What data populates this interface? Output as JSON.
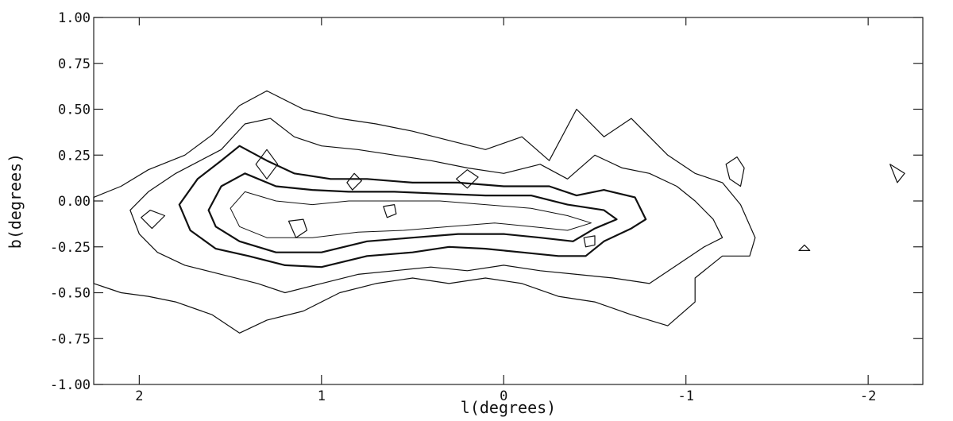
{
  "chart_data": {
    "type": "contour",
    "title": "",
    "xlabel": "l(degrees)",
    "ylabel": "b(degrees)",
    "xlim": [
      2.25,
      -2.3
    ],
    "ylim": [
      -1.0,
      1.0
    ],
    "x_ticks": [
      {
        "value": 2,
        "label": "2"
      },
      {
        "value": 1,
        "label": "1"
      },
      {
        "value": 0,
        "label": "0"
      },
      {
        "value": -1,
        "label": "-1"
      },
      {
        "value": -2,
        "label": "-2"
      }
    ],
    "y_ticks": [
      {
        "value": 1.0,
        "label": "1.00"
      },
      {
        "value": 0.75,
        "label": "0.75"
      },
      {
        "value": 0.5,
        "label": "0.50"
      },
      {
        "value": 0.25,
        "label": "0.25"
      },
      {
        "value": 0.0,
        "label": "0.00"
      },
      {
        "value": -0.25,
        "label": "-0.25"
      },
      {
        "value": -0.5,
        "label": "-0.50"
      },
      {
        "value": -0.75,
        "label": "-0.75"
      },
      {
        "value": -1.0,
        "label": "-1.00"
      }
    ],
    "grid": false,
    "contours": [
      {
        "level": 1,
        "points": [
          [
            2.25,
            0.02
          ],
          [
            2.1,
            0.08
          ],
          [
            1.95,
            0.17
          ],
          [
            1.75,
            0.25
          ],
          [
            1.6,
            0.36
          ],
          [
            1.45,
            0.52
          ],
          [
            1.3,
            0.6
          ],
          [
            1.1,
            0.5
          ],
          [
            0.9,
            0.45
          ],
          [
            0.7,
            0.42
          ],
          [
            0.5,
            0.38
          ],
          [
            0.3,
            0.33
          ],
          [
            0.1,
            0.28
          ],
          [
            -0.1,
            0.35
          ],
          [
            -0.25,
            0.22
          ],
          [
            -0.4,
            0.5
          ],
          [
            -0.55,
            0.35
          ],
          [
            -0.7,
            0.45
          ],
          [
            -0.9,
            0.25
          ],
          [
            -1.05,
            0.15
          ],
          [
            -1.2,
            0.1
          ],
          [
            -1.3,
            -0.02
          ],
          [
            -1.38,
            -0.2
          ],
          [
            -1.35,
            -0.3
          ],
          [
            -1.2,
            -0.3
          ],
          [
            -1.05,
            -0.42
          ],
          [
            -1.05,
            -0.55
          ],
          [
            -0.9,
            -0.68
          ],
          [
            -0.7,
            -0.62
          ],
          [
            -0.5,
            -0.55
          ],
          [
            -0.3,
            -0.52
          ],
          [
            -0.1,
            -0.45
          ],
          [
            0.1,
            -0.42
          ],
          [
            0.3,
            -0.45
          ],
          [
            0.5,
            -0.42
          ],
          [
            0.7,
            -0.45
          ],
          [
            0.9,
            -0.5
          ],
          [
            1.1,
            -0.6
          ],
          [
            1.3,
            -0.65
          ],
          [
            1.45,
            -0.72
          ],
          [
            1.6,
            -0.62
          ],
          [
            1.8,
            -0.55
          ],
          [
            1.95,
            -0.52
          ],
          [
            2.1,
            -0.5
          ],
          [
            2.25,
            -0.45
          ]
        ]
      },
      {
        "level": 2,
        "points": [
          [
            2.05,
            -0.05
          ],
          [
            1.95,
            0.05
          ],
          [
            1.8,
            0.15
          ],
          [
            1.55,
            0.28
          ],
          [
            1.42,
            0.42
          ],
          [
            1.28,
            0.45
          ],
          [
            1.15,
            0.35
          ],
          [
            1.0,
            0.3
          ],
          [
            0.8,
            0.28
          ],
          [
            0.6,
            0.25
          ],
          [
            0.4,
            0.22
          ],
          [
            0.2,
            0.18
          ],
          [
            0.0,
            0.15
          ],
          [
            -0.2,
            0.2
          ],
          [
            -0.35,
            0.12
          ],
          [
            -0.5,
            0.25
          ],
          [
            -0.65,
            0.18
          ],
          [
            -0.8,
            0.15
          ],
          [
            -0.95,
            0.08
          ],
          [
            -1.05,
            0.0
          ],
          [
            -1.15,
            -0.1
          ],
          [
            -1.2,
            -0.2
          ],
          [
            -1.1,
            -0.25
          ],
          [
            -0.95,
            -0.35
          ],
          [
            -0.8,
            -0.45
          ],
          [
            -0.6,
            -0.42
          ],
          [
            -0.4,
            -0.4
          ],
          [
            -0.2,
            -0.38
          ],
          [
            0.0,
            -0.35
          ],
          [
            0.2,
            -0.38
          ],
          [
            0.4,
            -0.36
          ],
          [
            0.6,
            -0.38
          ],
          [
            0.8,
            -0.4
          ],
          [
            1.0,
            -0.45
          ],
          [
            1.2,
            -0.5
          ],
          [
            1.35,
            -0.45
          ],
          [
            1.55,
            -0.4
          ],
          [
            1.75,
            -0.35
          ],
          [
            1.9,
            -0.28
          ],
          [
            2.0,
            -0.18
          ]
        ]
      },
      {
        "level": 3,
        "points": [
          [
            1.78,
            -0.02
          ],
          [
            1.68,
            0.12
          ],
          [
            1.55,
            0.22
          ],
          [
            1.45,
            0.3
          ],
          [
            1.3,
            0.22
          ],
          [
            1.15,
            0.15
          ],
          [
            0.95,
            0.12
          ],
          [
            0.75,
            0.12
          ],
          [
            0.5,
            0.1
          ],
          [
            0.25,
            0.1
          ],
          [
            0.0,
            0.08
          ],
          [
            -0.25,
            0.08
          ],
          [
            -0.4,
            0.03
          ],
          [
            -0.55,
            0.06
          ],
          [
            -0.72,
            0.02
          ],
          [
            -0.78,
            -0.1
          ],
          [
            -0.7,
            -0.15
          ],
          [
            -0.55,
            -0.22
          ],
          [
            -0.45,
            -0.3
          ],
          [
            -0.3,
            -0.3
          ],
          [
            -0.1,
            -0.28
          ],
          [
            0.1,
            -0.26
          ],
          [
            0.3,
            -0.25
          ],
          [
            0.5,
            -0.28
          ],
          [
            0.75,
            -0.3
          ],
          [
            1.0,
            -0.36
          ],
          [
            1.2,
            -0.35
          ],
          [
            1.4,
            -0.3
          ],
          [
            1.58,
            -0.26
          ],
          [
            1.72,
            -0.16
          ]
        ]
      },
      {
        "level": 4,
        "points": [
          [
            1.62,
            -0.05
          ],
          [
            1.55,
            0.08
          ],
          [
            1.42,
            0.15
          ],
          [
            1.25,
            0.08
          ],
          [
            1.05,
            0.06
          ],
          [
            0.85,
            0.05
          ],
          [
            0.6,
            0.05
          ],
          [
            0.35,
            0.04
          ],
          [
            0.1,
            0.03
          ],
          [
            -0.15,
            0.03
          ],
          [
            -0.35,
            -0.02
          ],
          [
            -0.55,
            -0.05
          ],
          [
            -0.62,
            -0.1
          ],
          [
            -0.5,
            -0.15
          ],
          [
            -0.38,
            -0.22
          ],
          [
            -0.2,
            -0.2
          ],
          [
            0.0,
            -0.18
          ],
          [
            0.25,
            -0.18
          ],
          [
            0.5,
            -0.2
          ],
          [
            0.75,
            -0.22
          ],
          [
            1.0,
            -0.28
          ],
          [
            1.25,
            -0.28
          ],
          [
            1.45,
            -0.22
          ],
          [
            1.58,
            -0.14
          ]
        ]
      },
      {
        "level": 5,
        "points": [
          [
            1.5,
            -0.04
          ],
          [
            1.42,
            0.05
          ],
          [
            1.25,
            0.0
          ],
          [
            1.05,
            -0.02
          ],
          [
            0.85,
            0.0
          ],
          [
            0.6,
            0.0
          ],
          [
            0.35,
            0.0
          ],
          [
            0.1,
            -0.02
          ],
          [
            -0.15,
            -0.04
          ],
          [
            -0.35,
            -0.08
          ],
          [
            -0.48,
            -0.12
          ],
          [
            -0.35,
            -0.16
          ],
          [
            -0.15,
            -0.14
          ],
          [
            0.05,
            -0.12
          ],
          [
            0.3,
            -0.14
          ],
          [
            0.55,
            -0.16
          ],
          [
            0.8,
            -0.17
          ],
          [
            1.05,
            -0.2
          ],
          [
            1.3,
            -0.2
          ],
          [
            1.45,
            -0.14
          ]
        ]
      },
      {
        "level": 6,
        "points": [
          [
            1.3,
            0.12
          ],
          [
            1.24,
            0.2
          ],
          [
            1.3,
            0.28
          ],
          [
            1.36,
            0.2
          ]
        ]
      },
      {
        "level": 6,
        "points": [
          [
            1.18,
            -0.11
          ],
          [
            1.1,
            -0.1
          ],
          [
            1.08,
            -0.16
          ],
          [
            1.14,
            -0.2
          ]
        ]
      },
      {
        "level": 6,
        "points": [
          [
            0.66,
            -0.03
          ],
          [
            0.6,
            -0.02
          ],
          [
            0.59,
            -0.07
          ],
          [
            0.64,
            -0.09
          ]
        ]
      },
      {
        "level": 6,
        "points": [
          [
            -0.44,
            -0.2
          ],
          [
            -0.5,
            -0.19
          ],
          [
            -0.5,
            -0.24
          ],
          [
            -0.45,
            -0.25
          ]
        ]
      },
      {
        "level": 1,
        "points": [
          [
            1.99,
            -0.09
          ],
          [
            1.94,
            -0.05
          ],
          [
            1.86,
            -0.08
          ],
          [
            1.93,
            -0.15
          ]
        ]
      },
      {
        "level": 1,
        "points": [
          [
            0.83,
            0.06
          ],
          [
            0.78,
            0.11
          ],
          [
            0.82,
            0.15
          ],
          [
            0.86,
            0.1
          ]
        ]
      },
      {
        "level": 1,
        "points": [
          [
            0.2,
            0.07
          ],
          [
            0.14,
            0.13
          ],
          [
            0.2,
            0.17
          ],
          [
            0.26,
            0.12
          ]
        ]
      },
      {
        "level": 1,
        "points": [
          [
            -1.22,
            0.2
          ],
          [
            -1.28,
            0.24
          ],
          [
            -1.32,
            0.18
          ],
          [
            -1.3,
            0.08
          ],
          [
            -1.24,
            0.12
          ]
        ]
      },
      {
        "level": 1,
        "points": [
          [
            -1.68,
            -0.27
          ],
          [
            -1.65,
            -0.24
          ],
          [
            -1.62,
            -0.27
          ]
        ]
      },
      {
        "level": 1,
        "points": [
          [
            -2.12,
            0.2
          ],
          [
            -2.2,
            0.15
          ],
          [
            -2.16,
            0.1
          ]
        ]
      }
    ]
  }
}
